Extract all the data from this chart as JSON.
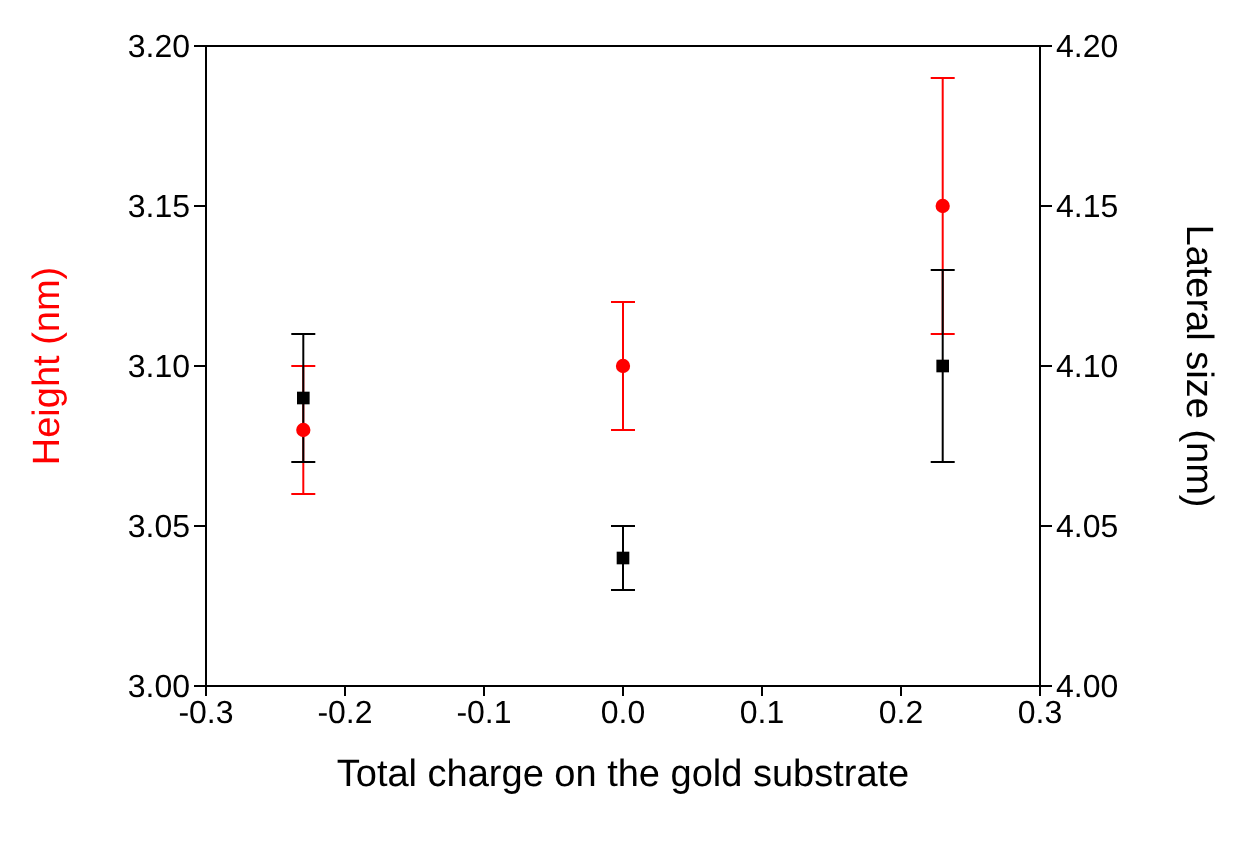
{
  "chart_data": {
    "type": "scatter",
    "xlabel": "Total charge on the gold substrate",
    "ylabel": "Height (nm)",
    "y2label": "Lateral size (nm)",
    "x": [
      -0.23,
      0,
      0.23
    ],
    "xlim": [
      -0.3,
      0.3
    ],
    "xticks": [
      -0.3,
      -0.2,
      -0.1,
      {
        "value": 0,
        "label": "0.0"
      },
      0.1,
      0.2,
      0.3
    ],
    "ylim": [
      3.0,
      3.2
    ],
    "yticks": [
      {
        "value": 3.0,
        "label": "3.00"
      },
      3.05,
      {
        "value": 3.1,
        "label": "3.10"
      },
      3.15,
      {
        "value": 3.2,
        "label": "3.20"
      }
    ],
    "y2lim": [
      4.0,
      4.2
    ],
    "y2ticks": [
      {
        "value": 4.0,
        "label": "4.00"
      },
      4.05,
      {
        "value": 4.1,
        "label": "4.10"
      },
      4.15,
      {
        "value": 4.2,
        "label": "4.20"
      }
    ],
    "series": [
      {
        "color": "#ff0000",
        "marker": "circle",
        "values": [
          3.08,
          3.1,
          3.15
        ],
        "errors": [
          0.02,
          0.02,
          0.04
        ]
      },
      {
        "color": "#000000",
        "marker": "square",
        "axis": "y2",
        "values": [
          4.09,
          4.04,
          4.1
        ],
        "errors": [
          0.02,
          0.01,
          0.03
        ]
      }
    ]
  }
}
